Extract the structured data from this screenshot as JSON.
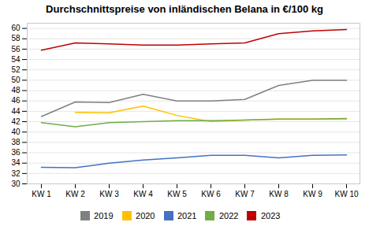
{
  "chart_data": {
    "type": "line",
    "title": "Durchschnittspreise von inländischen Belana in €/100 kg",
    "categories": [
      "KW 1",
      "KW 2",
      "KW 3",
      "KW 4",
      "KW 5",
      "KW 6",
      "KW 7",
      "KW 8",
      "KW 9",
      "KW 10"
    ],
    "series": [
      {
        "name": "2019",
        "color": "#808080",
        "values": [
          43.0,
          45.8,
          45.7,
          47.3,
          46.0,
          46.0,
          46.3,
          49.0,
          50.0,
          50.0
        ]
      },
      {
        "name": "2020",
        "color": "#FFC000",
        "values": [
          null,
          43.8,
          43.7,
          45.0,
          43.2,
          42.0,
          42.3,
          42.5,
          42.5,
          42.5
        ]
      },
      {
        "name": "2021",
        "color": "#4472C4",
        "values": [
          33.2,
          33.1,
          34.0,
          34.6,
          35.0,
          35.5,
          35.5,
          35.0,
          35.5,
          35.6
        ]
      },
      {
        "name": "2022",
        "color": "#70AD47",
        "values": [
          41.8,
          41.0,
          41.8,
          42.0,
          42.2,
          42.2,
          42.3,
          42.5,
          42.5,
          42.6
        ]
      },
      {
        "name": "2023",
        "color": "#C00000",
        "values": [
          55.8,
          57.2,
          57.0,
          56.8,
          56.8,
          57.0,
          57.2,
          59.0,
          59.5,
          59.8
        ]
      }
    ],
    "ylim": [
      30,
      61
    ],
    "yticks": [
      30,
      32,
      34,
      36,
      38,
      40,
      42,
      44,
      46,
      48,
      50,
      52,
      54,
      56,
      58,
      60
    ],
    "grid": true,
    "legend": "bottom"
  }
}
